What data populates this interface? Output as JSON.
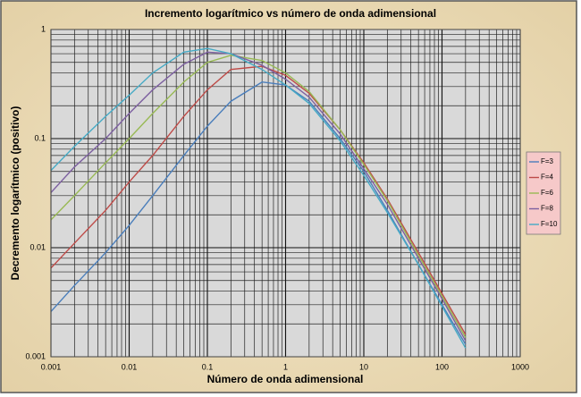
{
  "chart_data": {
    "type": "line",
    "title": "Incremento logarítmico vs número de onda adimensional",
    "x_label": "Número de onda adimensional",
    "y_label": "Decremento logarítmico (positivo)",
    "log_x": true,
    "log_y": true,
    "grid": true,
    "legend": "right",
    "x": [
      0.001,
      0.002,
      0.005,
      0.01,
      0.02,
      0.05,
      0.1,
      0.2,
      0.5,
      1,
      2,
      5,
      10,
      20,
      50,
      100,
      200
    ],
    "series": [
      {
        "name": "F=3",
        "color": "#4a7ebb",
        "values": [
          0.0026,
          0.0045,
          0.009,
          0.016,
          0.03,
          0.07,
          0.13,
          0.22,
          0.33,
          0.31,
          0.22,
          0.1,
          0.05,
          0.022,
          0.007,
          0.003,
          0.0013
        ]
      },
      {
        "name": "F=4",
        "color": "#be4b48",
        "values": [
          0.0065,
          0.011,
          0.022,
          0.04,
          0.07,
          0.16,
          0.28,
          0.43,
          0.46,
          0.38,
          0.26,
          0.12,
          0.06,
          0.028,
          0.009,
          0.0038,
          0.0016
        ]
      },
      {
        "name": "F=6",
        "color": "#98b954",
        "values": [
          0.018,
          0.03,
          0.06,
          0.1,
          0.17,
          0.33,
          0.5,
          0.58,
          0.52,
          0.4,
          0.27,
          0.12,
          0.058,
          0.027,
          0.0085,
          0.0036,
          0.0015
        ]
      },
      {
        "name": "F=8",
        "color": "#7d60a0",
        "values": [
          0.032,
          0.055,
          0.1,
          0.17,
          0.28,
          0.48,
          0.62,
          0.6,
          0.47,
          0.35,
          0.24,
          0.11,
          0.053,
          0.025,
          0.008,
          0.0034,
          0.0014
        ]
      },
      {
        "name": "F=10",
        "color": "#46aac5",
        "values": [
          0.051,
          0.085,
          0.16,
          0.25,
          0.4,
          0.62,
          0.67,
          0.6,
          0.43,
          0.31,
          0.21,
          0.095,
          0.046,
          0.021,
          0.007,
          0.0029,
          0.0012
        ]
      }
    ],
    "xlim": [
      0.001,
      1000
    ],
    "xticks": [
      0.001,
      0.01,
      0.1,
      1,
      10,
      100,
      1000
    ],
    "ylim": [
      0.001,
      1
    ],
    "yticks": [
      0.001,
      0.01,
      0.1,
      1
    ]
  }
}
